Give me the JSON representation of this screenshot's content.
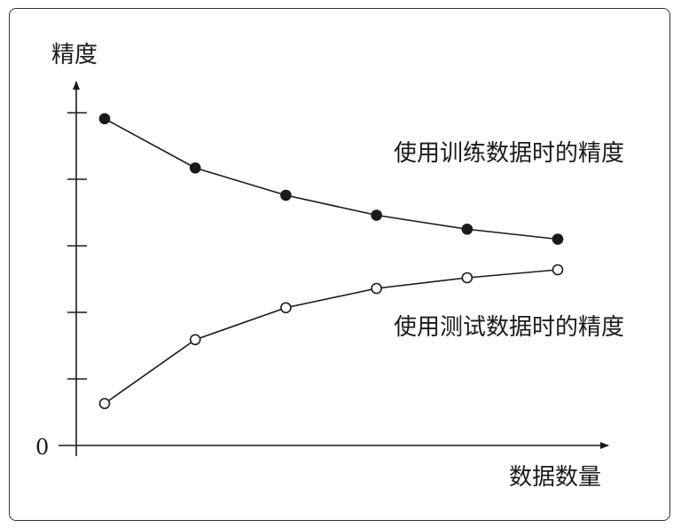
{
  "chart_data": {
    "type": "line",
    "ylabel": "精度",
    "xlabel": "数据数量",
    "y_origin_label": "0",
    "x": [
      1,
      2,
      3,
      4,
      5,
      6
    ],
    "ylim": [
      0,
      5
    ],
    "y_ticks": [
      1,
      2,
      3,
      4,
      5
    ],
    "grid": false,
    "series": [
      {
        "name": "使用训练数据时的精度",
        "values": [
          4.91,
          4.17,
          3.76,
          3.46,
          3.25,
          3.1
        ],
        "marker": "filled-circle",
        "color": "#1a1a1a"
      },
      {
        "name": "使用测试数据时的精度",
        "values": [
          0.63,
          1.59,
          2.07,
          2.36,
          2.52,
          2.64
        ],
        "marker": "open-circle",
        "color": "#1a1a1a"
      }
    ]
  }
}
